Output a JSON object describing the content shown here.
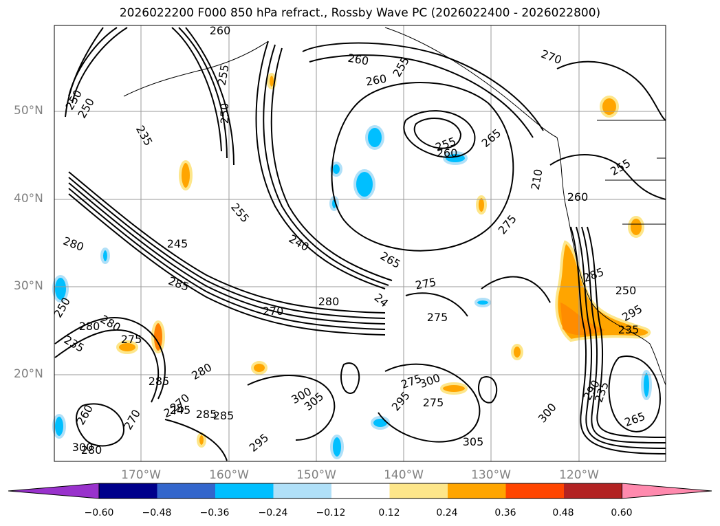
{
  "title": "2026022200 F000 850 hPa refract., Rossby Wave PC (2026022400 - 2026022800)",
  "lat_labels": [
    "50°N",
    "40°N",
    "30°N",
    "20°N"
  ],
  "lon_labels": [
    "170°W",
    "160°W",
    "150°W",
    "140°W",
    "130°W",
    "120°W"
  ],
  "colorbar": {
    "colors": [
      "#9932cc",
      "#00008b",
      "#3366cc",
      "#00bfff",
      "#b0e0f8",
      "#ffffff",
      "#fde68a",
      "#ffa500",
      "#ff4500",
      "#b22222",
      "#ff8aae"
    ],
    "ticks": [
      "−0.60",
      "−0.48",
      "−0.36",
      "−0.24",
      "−0.12",
      "0.12",
      "0.24",
      "0.36",
      "0.48",
      "0.60"
    ]
  },
  "contour_labels": [
    "260",
    "255",
    "270",
    "250",
    "255",
    "260",
    "260",
    "255",
    "250",
    "235",
    "250",
    "265",
    "255",
    "260",
    "210",
    "255",
    "240",
    "260",
    "265",
    "275",
    "280",
    "245",
    "285",
    "275",
    "275",
    "270",
    "280",
    "285",
    "250",
    "280",
    "24",
    "235",
    "280",
    "275",
    "235",
    "285",
    "280",
    "285",
    "275",
    "300",
    "295",
    "295",
    "270",
    "275",
    "300",
    "305",
    "305",
    "300",
    "295",
    "265",
    "235",
    "260",
    "270",
    "285",
    "290",
    "275",
    "250",
    "300",
    "280",
    "245"
  ]
}
